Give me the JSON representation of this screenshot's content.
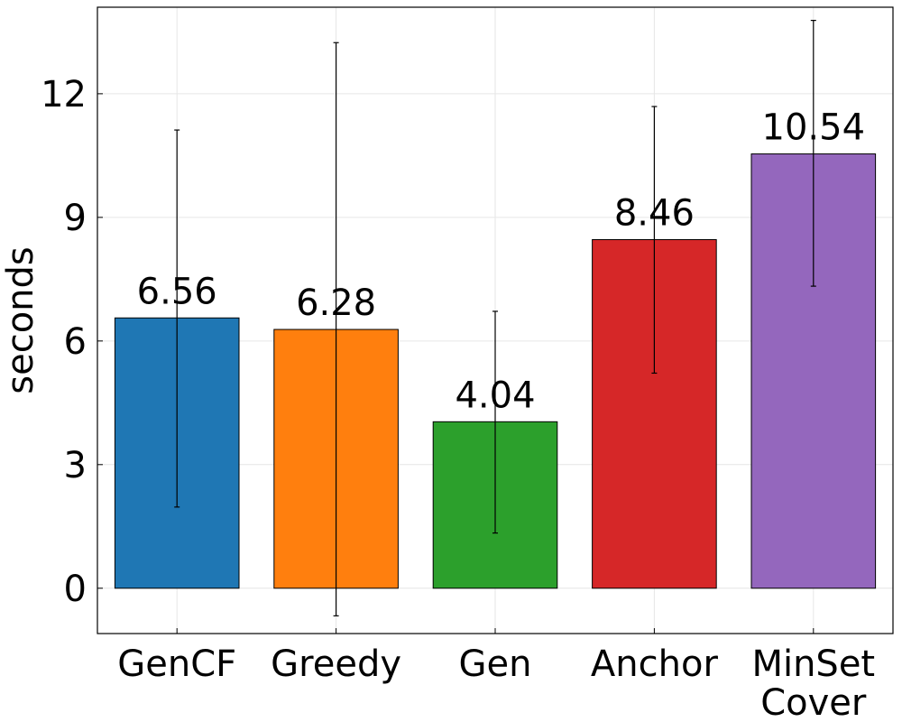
{
  "chart_data": {
    "type": "bar",
    "title": "",
    "xlabel": "",
    "ylabel": "seconds",
    "ylim": [
      -1.1,
      14.1
    ],
    "yticks": [
      0,
      3,
      6,
      9,
      12
    ],
    "grid": true,
    "categories": [
      [
        "GenCF"
      ],
      [
        "Greedy"
      ],
      [
        "Gen"
      ],
      [
        "Anchor"
      ],
      [
        "MinSet",
        "Cover"
      ]
    ],
    "values": [
      6.56,
      6.28,
      4.04,
      8.46,
      10.54
    ],
    "value_labels": [
      "6.56",
      "6.28",
      "4.04",
      "8.46",
      "10.54"
    ],
    "error_low": [
      1.97,
      -0.67,
      1.34,
      5.22,
      7.33
    ],
    "error_high": [
      11.12,
      13.24,
      6.72,
      11.69,
      13.78
    ],
    "colors": [
      "#1f77b4",
      "#ff7f0e",
      "#2ca02c",
      "#d62728",
      "#9467bd"
    ]
  }
}
